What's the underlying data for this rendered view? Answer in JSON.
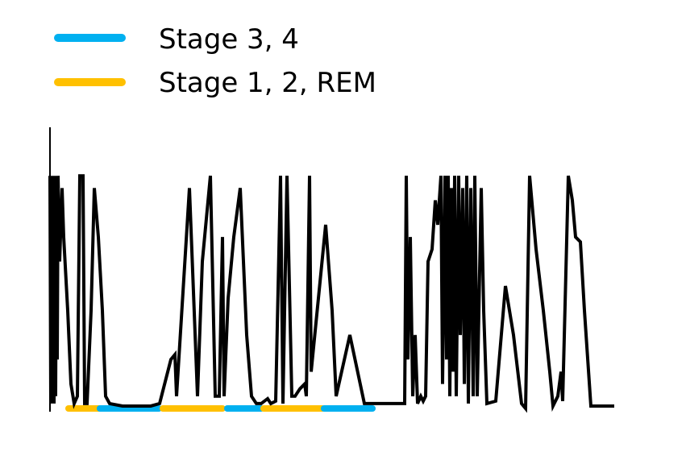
{
  "chart_data": {
    "type": "line",
    "title": "",
    "xlabel": "",
    "ylabel": "",
    "axes_visible": {
      "x": false,
      "y": true
    },
    "ticks_visible": false,
    "grid": false,
    "legend": {
      "placement": "top-left",
      "entries": [
        {
          "label": "Stage 3, 4",
          "color": "#00b0f0"
        },
        {
          "label": "Stage 1, 2, REM",
          "color": "#ffc000"
        }
      ]
    },
    "xlim": [
      0,
      700
    ],
    "ylim": [
      0,
      100
    ],
    "signal": {
      "color": "#000000",
      "points": [
        [
          0,
          95
        ],
        [
          1,
          2
        ],
        [
          2,
          90
        ],
        [
          3,
          30
        ],
        [
          4,
          95
        ],
        [
          5,
          2
        ],
        [
          6,
          95
        ],
        [
          7,
          5
        ],
        [
          8,
          85
        ],
        [
          9,
          20
        ],
        [
          10,
          95
        ],
        [
          12,
          60
        ],
        [
          15,
          90
        ],
        [
          17,
          70
        ],
        [
          22,
          40
        ],
        [
          26,
          10
        ],
        [
          30,
          2
        ],
        [
          34,
          5
        ],
        [
          37,
          95
        ],
        [
          41,
          95
        ],
        [
          43,
          2
        ],
        [
          46,
          2
        ],
        [
          51,
          40
        ],
        [
          55,
          90
        ],
        [
          60,
          70
        ],
        [
          65,
          40
        ],
        [
          69,
          5
        ],
        [
          74,
          2
        ],
        [
          90,
          1
        ],
        [
          125,
          1
        ],
        [
          136,
          2
        ],
        [
          150,
          20
        ],
        [
          155,
          22
        ],
        [
          157,
          5
        ],
        [
          173,
          90
        ],
        [
          183,
          5
        ],
        [
          189,
          60
        ],
        [
          199,
          95
        ],
        [
          205,
          5
        ],
        [
          210,
          5
        ],
        [
          214,
          70
        ],
        [
          216,
          5
        ],
        [
          221,
          45
        ],
        [
          228,
          70
        ],
        [
          236,
          90
        ],
        [
          244,
          30
        ],
        [
          250,
          5
        ],
        [
          256,
          2
        ],
        [
          262,
          2
        ],
        [
          270,
          4
        ],
        [
          274,
          2
        ],
        [
          280,
          3
        ],
        [
          286,
          95
        ],
        [
          289,
          2
        ],
        [
          294,
          95
        ],
        [
          300,
          5
        ],
        [
          304,
          5
        ],
        [
          310,
          8
        ],
        [
          316,
          10
        ],
        [
          318,
          5
        ],
        [
          322,
          95
        ],
        [
          324,
          15
        ],
        [
          330,
          35
        ],
        [
          342,
          75
        ],
        [
          350,
          40
        ],
        [
          355,
          5
        ],
        [
          372,
          30
        ],
        [
          390,
          2
        ],
        [
          440,
          2
        ],
        [
          442,
          95
        ],
        [
          444,
          20
        ],
        [
          447,
          70
        ],
        [
          450,
          5
        ],
        [
          453,
          30
        ],
        [
          456,
          2
        ],
        [
          460,
          5
        ],
        [
          463,
          3
        ],
        [
          466,
          5
        ],
        [
          469,
          60
        ],
        [
          474,
          65
        ],
        [
          478,
          85
        ],
        [
          481,
          75
        ],
        [
          485,
          95
        ],
        [
          487,
          10
        ],
        [
          490,
          95
        ],
        [
          492,
          20
        ],
        [
          494,
          95
        ],
        [
          496,
          5
        ],
        [
          498,
          90
        ],
        [
          500,
          15
        ],
        [
          502,
          95
        ],
        [
          504,
          5
        ],
        [
          507,
          95
        ],
        [
          509,
          30
        ],
        [
          512,
          90
        ],
        [
          514,
          10
        ],
        [
          517,
          95
        ],
        [
          519,
          2
        ],
        [
          522,
          90
        ],
        [
          525,
          5
        ],
        [
          527,
          95
        ],
        [
          530,
          5
        ],
        [
          535,
          90
        ],
        [
          538,
          40
        ],
        [
          542,
          2
        ],
        [
          553,
          3
        ],
        [
          565,
          50
        ],
        [
          575,
          30
        ],
        [
          585,
          2
        ],
        [
          590,
          0
        ],
        [
          595,
          95
        ],
        [
          603,
          65
        ],
        [
          612,
          40
        ],
        [
          620,
          15
        ],
        [
          624,
          1
        ],
        [
          630,
          5
        ],
        [
          634,
          15
        ],
        [
          636,
          3
        ],
        [
          643,
          95
        ],
        [
          648,
          85
        ],
        [
          652,
          70
        ],
        [
          658,
          68
        ],
        [
          663,
          40
        ],
        [
          671,
          1
        ],
        [
          680,
          1
        ],
        [
          700,
          1
        ]
      ]
    },
    "stage_segments": [
      {
        "stage": "Stage 1, 2, REM",
        "x_start": 23,
        "x_end": 62
      },
      {
        "stage": "Stage 3, 4",
        "x_start": 62,
        "x_end": 135
      },
      {
        "stage": "Stage 1, 2, REM",
        "x_start": 140,
        "x_end": 214
      },
      {
        "stage": "Stage 3, 4",
        "x_start": 220,
        "x_end": 262
      },
      {
        "stage": "Stage 1, 2, REM",
        "x_start": 265,
        "x_end": 338
      },
      {
        "stage": "Stage 3, 4",
        "x_start": 340,
        "x_end": 400
      }
    ],
    "colors": {
      "stage_3_4": "#00b0f0",
      "stage_1_2_rem": "#ffc000",
      "signal": "#000000",
      "axis": "#000000"
    }
  }
}
